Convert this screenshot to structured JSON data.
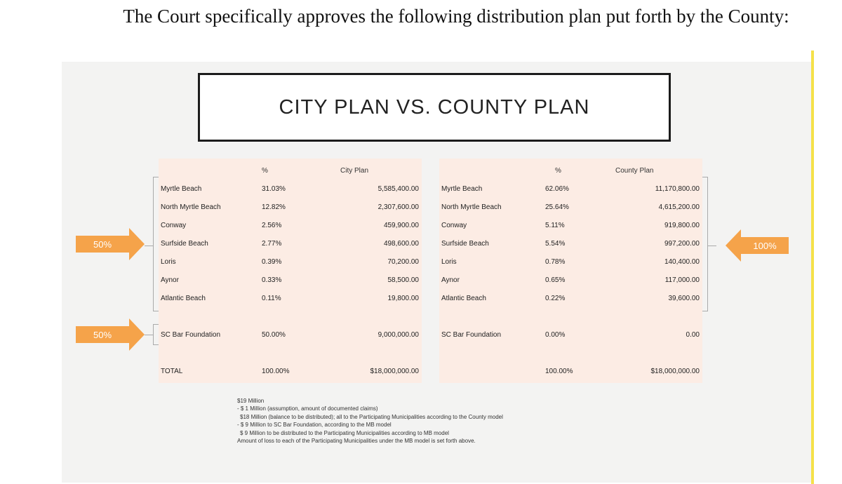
{
  "heading": "The Court specifically approves the following distribution plan put forth by the County:",
  "slide_title": "CITY PLAN VS. COUNTY PLAN",
  "city_table": {
    "pct_header": "%",
    "amt_header": "City Plan",
    "rows": [
      {
        "name": "Myrtle Beach",
        "pct": "31.03%",
        "amount": "5,585,400.00"
      },
      {
        "name": "North Myrtle Beach",
        "pct": "12.82%",
        "amount": "2,307,600.00"
      },
      {
        "name": "Conway",
        "pct": "2.56%",
        "amount": "459,900.00"
      },
      {
        "name": "Surfside Beach",
        "pct": "2.77%",
        "amount": "498,600.00"
      },
      {
        "name": "Loris",
        "pct": "0.39%",
        "amount": "70,200.00"
      },
      {
        "name": "Aynor",
        "pct": "0.33%",
        "amount": "58,500.00"
      },
      {
        "name": "Atlantic Beach",
        "pct": "0.11%",
        "amount": "19,800.00"
      }
    ],
    "foundation": {
      "name": "SC Bar Foundation",
      "pct": "50.00%",
      "amount": "9,000,000.00"
    },
    "total": {
      "name": "TOTAL",
      "pct": "100.00%",
      "amount": "$18,000,000.00"
    }
  },
  "county_table": {
    "pct_header": "%",
    "amt_header": "County Plan",
    "rows": [
      {
        "name": "Myrtle Beach",
        "pct": "62.06%",
        "amount": "11,170,800.00"
      },
      {
        "name": "North Myrtle Beach",
        "pct": "25.64%",
        "amount": "4,615,200.00"
      },
      {
        "name": "Conway",
        "pct": "5.11%",
        "amount": "919,800.00"
      },
      {
        "name": "Surfside Beach",
        "pct": "5.54%",
        "amount": "997,200.00"
      },
      {
        "name": "Loris",
        "pct": "0.78%",
        "amount": "140,400.00"
      },
      {
        "name": "Aynor",
        "pct": "0.65%",
        "amount": "117,000.00"
      },
      {
        "name": "Atlantic Beach",
        "pct": "0.22%",
        "amount": "39,600.00"
      }
    ],
    "foundation": {
      "name": "SC Bar Foundation",
      "pct": "0.00%",
      "amount": "0.00"
    },
    "total": {
      "pct": "100.00%",
      "amount": "$18,000,000.00"
    }
  },
  "arrows": {
    "city_municipal": "50%",
    "city_foundation": "50%",
    "county_municipal": "100%"
  },
  "notes": [
    "$19 Million",
    "- $  1 Million (assumption, amount of documented claims)",
    "  $18 Million (balance to be distributed); all to the Participating Municipalities according to the County model",
    "- $  9 Million to SC Bar Foundation, according to the MB model",
    "  $  9 Million to be distributed to the Participating Municipalities according to MB model",
    "Amount of loss to each of the Participating Municipalities under the MB model is set forth above."
  ],
  "colors": {
    "arrow": "#f5a34a",
    "panel": "#fcece4",
    "slide_bg": "#f3f3f2",
    "highlight_bar": "#f5e14a"
  }
}
